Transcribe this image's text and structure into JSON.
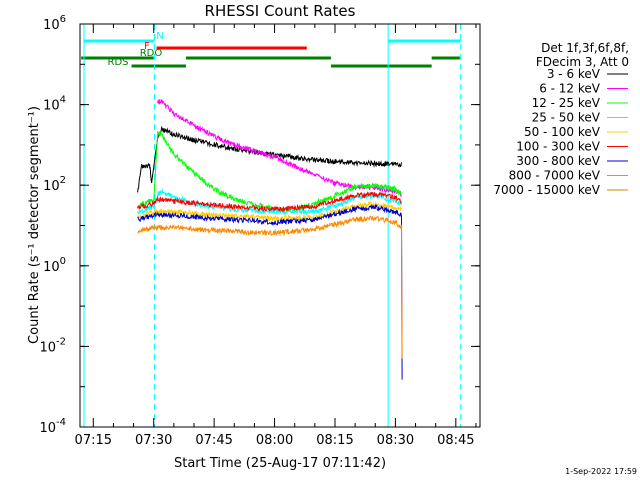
{
  "chart_data": {
    "type": "line",
    "title": "RHESSI Count Rates",
    "xlabel": "Start Time (25-Aug-17 07:11:42)",
    "ylabel": "Count Rate (s⁻¹ detector segment⁻¹)",
    "yscale": "log",
    "ylim": [
      0.0001,
      1000000
    ],
    "xlim": [
      "07:11:42",
      "08:51:00"
    ],
    "x_ticks": [
      "07:15",
      "07:30",
      "07:45",
      "08:00",
      "08:15",
      "08:30",
      "08:45"
    ],
    "y_ticks": [
      {
        "base": "10",
        "exp": "-4"
      },
      {
        "base": "10",
        "exp": "-2"
      },
      {
        "base": "10",
        "exp": "0"
      },
      {
        "base": "10",
        "exp": "2"
      },
      {
        "base": "10",
        "exp": "4"
      },
      {
        "base": "10",
        "exp": "6"
      }
    ],
    "legend_header": [
      "Det 1f,3f,6f,8f,",
      "FDecim 3, Att 0"
    ],
    "legend_placement": "right",
    "series": [
      {
        "name": "3 - 6 keV",
        "color": "#000000",
        "points": [
          [
            "07:26",
            "60"
          ],
          [
            "07:27",
            "300"
          ],
          [
            "07:29",
            "300"
          ],
          [
            "07:29:30",
            "120"
          ],
          [
            "07:31",
            "1500"
          ],
          [
            "07:32",
            "2500"
          ],
          [
            "07:35",
            "1800"
          ],
          [
            "07:40",
            "1300"
          ],
          [
            "07:50",
            "800"
          ],
          [
            "08:00",
            "550"
          ],
          [
            "08:10",
            "420"
          ],
          [
            "08:20",
            "360"
          ],
          [
            "08:31",
            "330"
          ],
          [
            "08:31:30",
            "330"
          ]
        ]
      },
      {
        "name": "6 - 12 keV",
        "color": "#ff00ff",
        "points": [
          [
            "07:31",
            "12000"
          ],
          [
            "07:32",
            "12000"
          ],
          [
            "07:35",
            "6000"
          ],
          [
            "07:40",
            "3000"
          ],
          [
            "07:45",
            "1600"
          ],
          [
            "07:50",
            "1000"
          ],
          [
            "08:00",
            "500"
          ],
          [
            "08:10",
            "180"
          ],
          [
            "08:15",
            "110"
          ],
          [
            "08:20",
            "90"
          ],
          [
            "08:25",
            "85"
          ],
          [
            "08:30",
            "70"
          ],
          [
            "08:31:30",
            "60"
          ]
        ]
      },
      {
        "name": "12 - 25 keV",
        "color": "#00ff00",
        "points": [
          [
            "07:26",
            "30"
          ],
          [
            "07:29",
            "40"
          ],
          [
            "07:30",
            "40"
          ],
          [
            "07:31",
            "2000"
          ],
          [
            "07:32",
            "1800"
          ],
          [
            "07:35",
            "600"
          ],
          [
            "07:40",
            "200"
          ],
          [
            "07:45",
            "80"
          ],
          [
            "07:50",
            "45"
          ],
          [
            "08:00",
            "25"
          ],
          [
            "08:05",
            "25"
          ],
          [
            "08:10",
            "35"
          ],
          [
            "08:15",
            "55"
          ],
          [
            "08:20",
            "90"
          ],
          [
            "08:25",
            "100"
          ],
          [
            "08:30",
            "80"
          ],
          [
            "08:31:30",
            "60"
          ]
        ]
      },
      {
        "name": "25 - 50 keV",
        "color": "#00ffff",
        "points": [
          [
            "07:26",
            "20"
          ],
          [
            "07:30",
            "30"
          ],
          [
            "07:31",
            "60"
          ],
          [
            "07:32",
            "70"
          ],
          [
            "07:35",
            "50"
          ],
          [
            "07:40",
            "35"
          ],
          [
            "07:50",
            "25"
          ],
          [
            "08:00",
            "22"
          ],
          [
            "08:10",
            "22"
          ],
          [
            "08:15",
            "30"
          ],
          [
            "08:20",
            "50"
          ],
          [
            "08:25",
            "55"
          ],
          [
            "08:30",
            "40"
          ],
          [
            "08:31:30",
            "35"
          ]
        ]
      },
      {
        "name": "50 - 100 keV",
        "color": "#ffcc00",
        "points": [
          [
            "07:26",
            "15"
          ],
          [
            "07:30",
            "22"
          ],
          [
            "07:35",
            "22"
          ],
          [
            "07:45",
            "18"
          ],
          [
            "08:00",
            "15"
          ],
          [
            "08:10",
            "16"
          ],
          [
            "08:20",
            "30"
          ],
          [
            "08:25",
            "35"
          ],
          [
            "08:31:30",
            "25"
          ]
        ]
      },
      {
        "name": "100 - 300 keV",
        "color": "#ff0000",
        "points": [
          [
            "07:26",
            "28"
          ],
          [
            "07:30",
            "35"
          ],
          [
            "07:31",
            "45"
          ],
          [
            "07:35",
            "40"
          ],
          [
            "07:45",
            "32"
          ],
          [
            "08:00",
            "25"
          ],
          [
            "08:10",
            "30"
          ],
          [
            "08:20",
            "55"
          ],
          [
            "08:25",
            "60"
          ],
          [
            "08:30",
            "50"
          ],
          [
            "08:31:30",
            "40"
          ]
        ]
      },
      {
        "name": "300 - 800 keV",
        "color": "#0000cc",
        "points": [
          [
            "07:26",
            "14"
          ],
          [
            "07:30",
            "18"
          ],
          [
            "07:35",
            "18"
          ],
          [
            "07:45",
            "15"
          ],
          [
            "08:00",
            "12"
          ],
          [
            "08:10",
            "14"
          ],
          [
            "08:20",
            "26"
          ],
          [
            "08:25",
            "28"
          ],
          [
            "08:30",
            "22"
          ],
          [
            "08:31:30",
            "18"
          ],
          [
            "08:31:40",
            "0.0015"
          ]
        ]
      },
      {
        "name": "800 - 7000 keV",
        "color": "#ff8800",
        "points": [
          [
            "07:26",
            "7"
          ],
          [
            "07:30",
            "9"
          ],
          [
            "07:35",
            "9"
          ],
          [
            "07:45",
            "7.5"
          ],
          [
            "08:00",
            "6.5"
          ],
          [
            "08:10",
            "8"
          ],
          [
            "08:20",
            "14"
          ],
          [
            "08:25",
            "15"
          ],
          [
            "08:30",
            "12"
          ],
          [
            "08:31:30",
            "9"
          ],
          [
            "08:31:40",
            "0.005"
          ]
        ]
      },
      {
        "name": "7000 - 15000 keV",
        "color": "#cc8800",
        "points": []
      }
    ],
    "vertical_lines": [
      {
        "time": "07:12:42",
        "color": "#00ffff",
        "style": "solid"
      },
      {
        "time": "07:30:12",
        "color": "#00ffff",
        "style": "dashed"
      },
      {
        "time": "08:28:12",
        "color": "#00ffff",
        "style": "solid"
      },
      {
        "time": "08:46:12",
        "color": "#00ffff",
        "style": "dashed"
      }
    ],
    "flag_bars": [
      {
        "label": "N",
        "color": "#00ffff",
        "segments": [
          [
            "07:12:42",
            "07:30:12"
          ],
          [
            "08:28:12",
            "08:46:12"
          ]
        ]
      },
      {
        "label": "F",
        "color": "#ff0000",
        "segments": [
          [
            "07:30:42",
            "08:08:00"
          ]
        ]
      },
      {
        "label": "RDO",
        "color": "#008000",
        "segments": [
          [
            "07:12:00",
            "07:30:00"
          ],
          [
            "07:38:00",
            "08:14:00"
          ],
          [
            "08:39:00",
            "08:46:00"
          ]
        ]
      },
      {
        "label": "RDS",
        "color": "#008000",
        "segments": [
          [
            "07:24:30",
            "07:38:00"
          ],
          [
            "08:14:00",
            "08:39:00"
          ]
        ]
      }
    ]
  },
  "footer": {
    "date": "1-Sep-2022 17:59"
  }
}
